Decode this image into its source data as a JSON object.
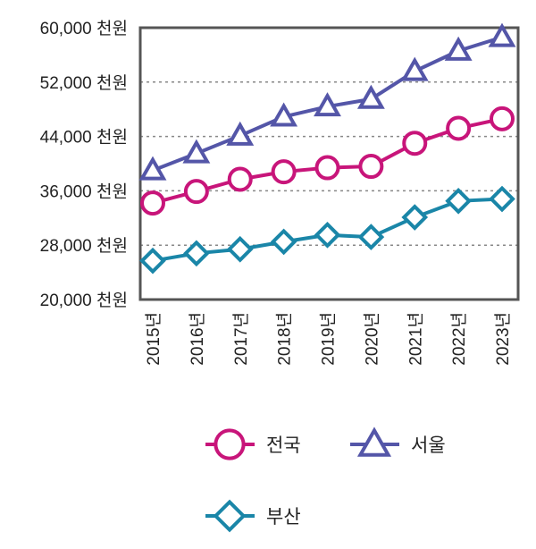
{
  "chart_data": {
    "type": "line",
    "title": "",
    "xlabel": "",
    "ylabel": "",
    "categories": [
      "2015년",
      "2016년",
      "2017년",
      "2018년",
      "2019년",
      "2020년",
      "2021년",
      "2022년",
      "2023년"
    ],
    "ylim": [
      20000,
      60000
    ],
    "yticks": [
      20000,
      28000,
      36000,
      44000,
      52000,
      60000
    ],
    "ytick_labels": [
      "20,000 천원",
      "28,000 천원",
      "36,000 천원",
      "44,000 천원",
      "52,000 천원",
      "60,000 천원"
    ],
    "grid": "horizontal dashed",
    "legend_position": "bottom",
    "series": [
      {
        "name": "전국",
        "marker": "circle",
        "color": "#C8157A",
        "values": [
          34200,
          35900,
          37700,
          38800,
          39400,
          39600,
          43000,
          45200,
          46600
        ]
      },
      {
        "name": "서울",
        "marker": "triangle",
        "color": "#5456A8",
        "values": [
          39000,
          41500,
          44100,
          46900,
          48400,
          49500,
          53600,
          56600,
          58600
        ]
      },
      {
        "name": "부산",
        "marker": "diamond",
        "color": "#1A86A8",
        "values": [
          25700,
          26800,
          27400,
          28500,
          29500,
          29200,
          32100,
          34500,
          34800
        ]
      }
    ]
  }
}
